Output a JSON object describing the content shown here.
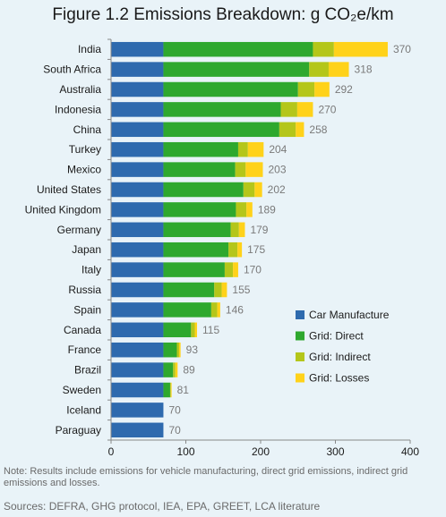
{
  "chart_data": {
    "type": "bar",
    "orientation": "horizontal",
    "stacked": true,
    "title": "Figure 1.2  Emissions Breakdown: g CO₂e/km",
    "xlim": [
      0,
      400
    ],
    "xticks": [
      0,
      100,
      200,
      300,
      400
    ],
    "grid": false,
    "legend_position": "bottom-right",
    "categories": [
      "India",
      "South Africa",
      "Australia",
      "Indonesia",
      "China",
      "Turkey",
      "Mexico",
      "United States",
      "United Kingdom",
      "Germany",
      "Japan",
      "Italy",
      "Russia",
      "Spain",
      "Canada",
      "France",
      "Brazil",
      "Sweden",
      "Iceland",
      "Paraguay"
    ],
    "totals": [
      370,
      318,
      292,
      270,
      258,
      204,
      203,
      202,
      189,
      179,
      175,
      170,
      155,
      146,
      115,
      93,
      89,
      81,
      70,
      70
    ],
    "series": [
      {
        "name": "Car Manufacture",
        "color": "#2e6aae",
        "values": [
          70,
          70,
          70,
          70,
          70,
          70,
          70,
          70,
          70,
          70,
          70,
          70,
          70,
          70,
          70,
          70,
          70,
          70,
          70,
          70
        ]
      },
      {
        "name": "Grid: Direct",
        "color": "#2ea82e",
        "values": [
          200,
          195,
          180,
          157,
          155,
          100,
          96,
          107,
          97,
          90,
          87,
          82,
          68,
          64,
          37,
          18,
          13,
          9,
          0,
          0
        ]
      },
      {
        "name": "Grid: Indirect",
        "color": "#b4c61a",
        "values": [
          28,
          26,
          22,
          22,
          22,
          13,
          14,
          15,
          14,
          11,
          12,
          11,
          10,
          8,
          5,
          3,
          3,
          1,
          0,
          0
        ]
      },
      {
        "name": "Grid: Losses",
        "color": "#ffd21a",
        "values": [
          72,
          27,
          20,
          21,
          11,
          21,
          23,
          10,
          8,
          8,
          6,
          7,
          7,
          4,
          3,
          2,
          3,
          1,
          0,
          0
        ]
      }
    ]
  },
  "note": "Note:  Results include emissions for vehicle manufacturing, direct grid emissions, indirect grid emissions and losses.",
  "sources": "Sources: DEFRA, GHG protocol, IEA, EPA, GREET, LCA literature"
}
